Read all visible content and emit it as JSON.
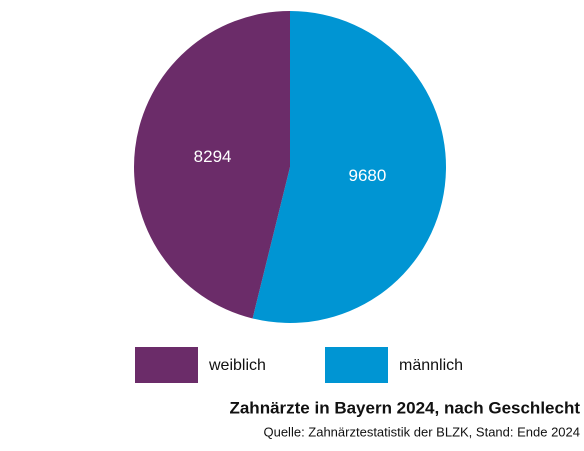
{
  "chart_data": {
    "type": "pie",
    "title": "Zahnärzte in Bayern 2024, nach Geschlecht",
    "source": "Quelle: Zahnärztestatistik der BLZK, Stand: Ende 2024",
    "categories": [
      "weiblich",
      "männlich"
    ],
    "values": [
      8294,
      9680
    ],
    "colors": [
      "#6b2c69",
      "#0095d3"
    ]
  }
}
